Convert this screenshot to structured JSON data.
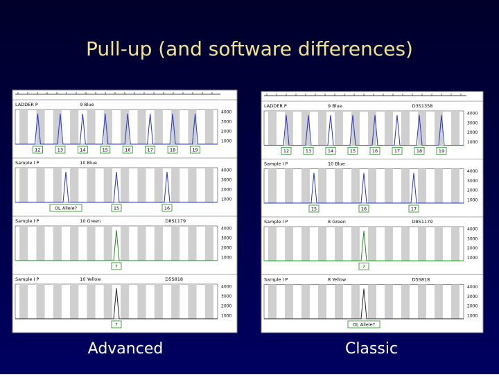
{
  "title": "Pull-up (and software differences)",
  "panels": [
    {
      "caption": "Advanced",
      "yticks": [
        "4000",
        "3000",
        "2000",
        "1000"
      ],
      "lanes": [
        {
          "header": "LADDER P",
          "dye": "9 Blue",
          "alleles": [
            "12",
            "13",
            "14",
            "15",
            "16",
            "17",
            "18",
            "19"
          ]
        },
        {
          "header": "Sample I P",
          "dye": "10 Blue",
          "alleles": [
            "OL Allele?",
            "15",
            "16"
          ]
        },
        {
          "header": "Sample I P",
          "dye": "10 Green",
          "locus": "D8S1179",
          "alleles": [
            "?"
          ]
        },
        {
          "header": "Sample I P",
          "dye": "10 Yellow",
          "locus": "D5S818",
          "alleles": [
            "?"
          ]
        }
      ]
    },
    {
      "caption": "Classic",
      "yticks": [
        "4000",
        "3000",
        "2000",
        "1000"
      ],
      "lanes": [
        {
          "header": "LADDER P",
          "dye": "9 Blue",
          "locus": "D3S1358",
          "alleles": [
            "12",
            "13",
            "14",
            "15",
            "16",
            "17",
            "18",
            "19"
          ]
        },
        {
          "header": "Sample I P",
          "dye": "10 Blue",
          "alleles": [
            "15",
            "16",
            "17"
          ]
        },
        {
          "header": "Sample I P",
          "dye": "8 Green",
          "locus": "D8S1179",
          "alleles": [
            "?"
          ]
        },
        {
          "header": "Sample I P",
          "dye": "8 Yellow",
          "locus": "D5S818",
          "alleles": [
            "OL Allele?"
          ]
        }
      ]
    }
  ]
}
